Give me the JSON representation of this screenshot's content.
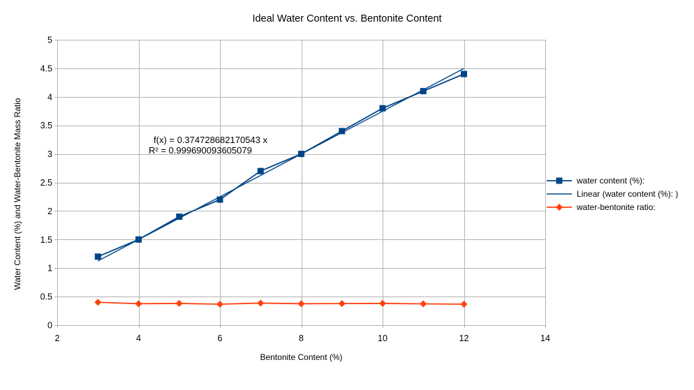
{
  "chart_data": {
    "type": "line",
    "title": "Ideal Water Content vs. Bentonite Content",
    "xlabel": "Bentonite Content (%)",
    "ylabel": "Water Content (%) and Water-Bentonite Mass Ratio",
    "xlim": [
      2,
      14
    ],
    "ylim": [
      0,
      5
    ],
    "x_ticks": [
      2,
      4,
      6,
      8,
      10,
      12,
      14
    ],
    "y_ticks": [
      0,
      0.5,
      1,
      1.5,
      2,
      2.5,
      3,
      3.5,
      4,
      4.5,
      5
    ],
    "grid": true,
    "legend_position": "right",
    "x": [
      3,
      4,
      5,
      6,
      7,
      8,
      9,
      10,
      11,
      12
    ],
    "series": [
      {
        "name": "water content (%):",
        "type": "line",
        "marker": "square",
        "color": "#004586",
        "values": [
          1.2,
          1.5,
          1.9,
          2.2,
          2.7,
          3.0,
          3.4,
          3.8,
          4.1,
          4.4
        ]
      },
      {
        "name": "Linear (water content (%): )",
        "type": "trendline",
        "marker": "none",
        "color": "#004586",
        "slope": 0.374728682170543,
        "intercept": 0,
        "x_range": [
          3,
          12
        ]
      },
      {
        "name": "water-bentonite ratio:",
        "type": "line",
        "marker": "diamond",
        "color": "#FF420E",
        "values": [
          0.4,
          0.375,
          0.38,
          0.3667,
          0.3857,
          0.375,
          0.3778,
          0.38,
          0.3727,
          0.3667
        ]
      }
    ],
    "annotation": {
      "line1": "f(x) = 0.374728682170543 x",
      "line2": "R² = 0.999690093605079"
    },
    "colors": {
      "grid": "#B3B3B3",
      "axis": "#B3B3B3",
      "text": "#000000",
      "background": "#FFFFFF"
    }
  },
  "legend": {
    "items": [
      {
        "label": "water content (%):",
        "marker": "square",
        "color": "#004586"
      },
      {
        "label": "Linear (water content (%): )",
        "marker": "line",
        "color": "#004586"
      },
      {
        "label": "water-bentonite ratio:",
        "marker": "diamond",
        "color": "#FF420E"
      }
    ]
  }
}
